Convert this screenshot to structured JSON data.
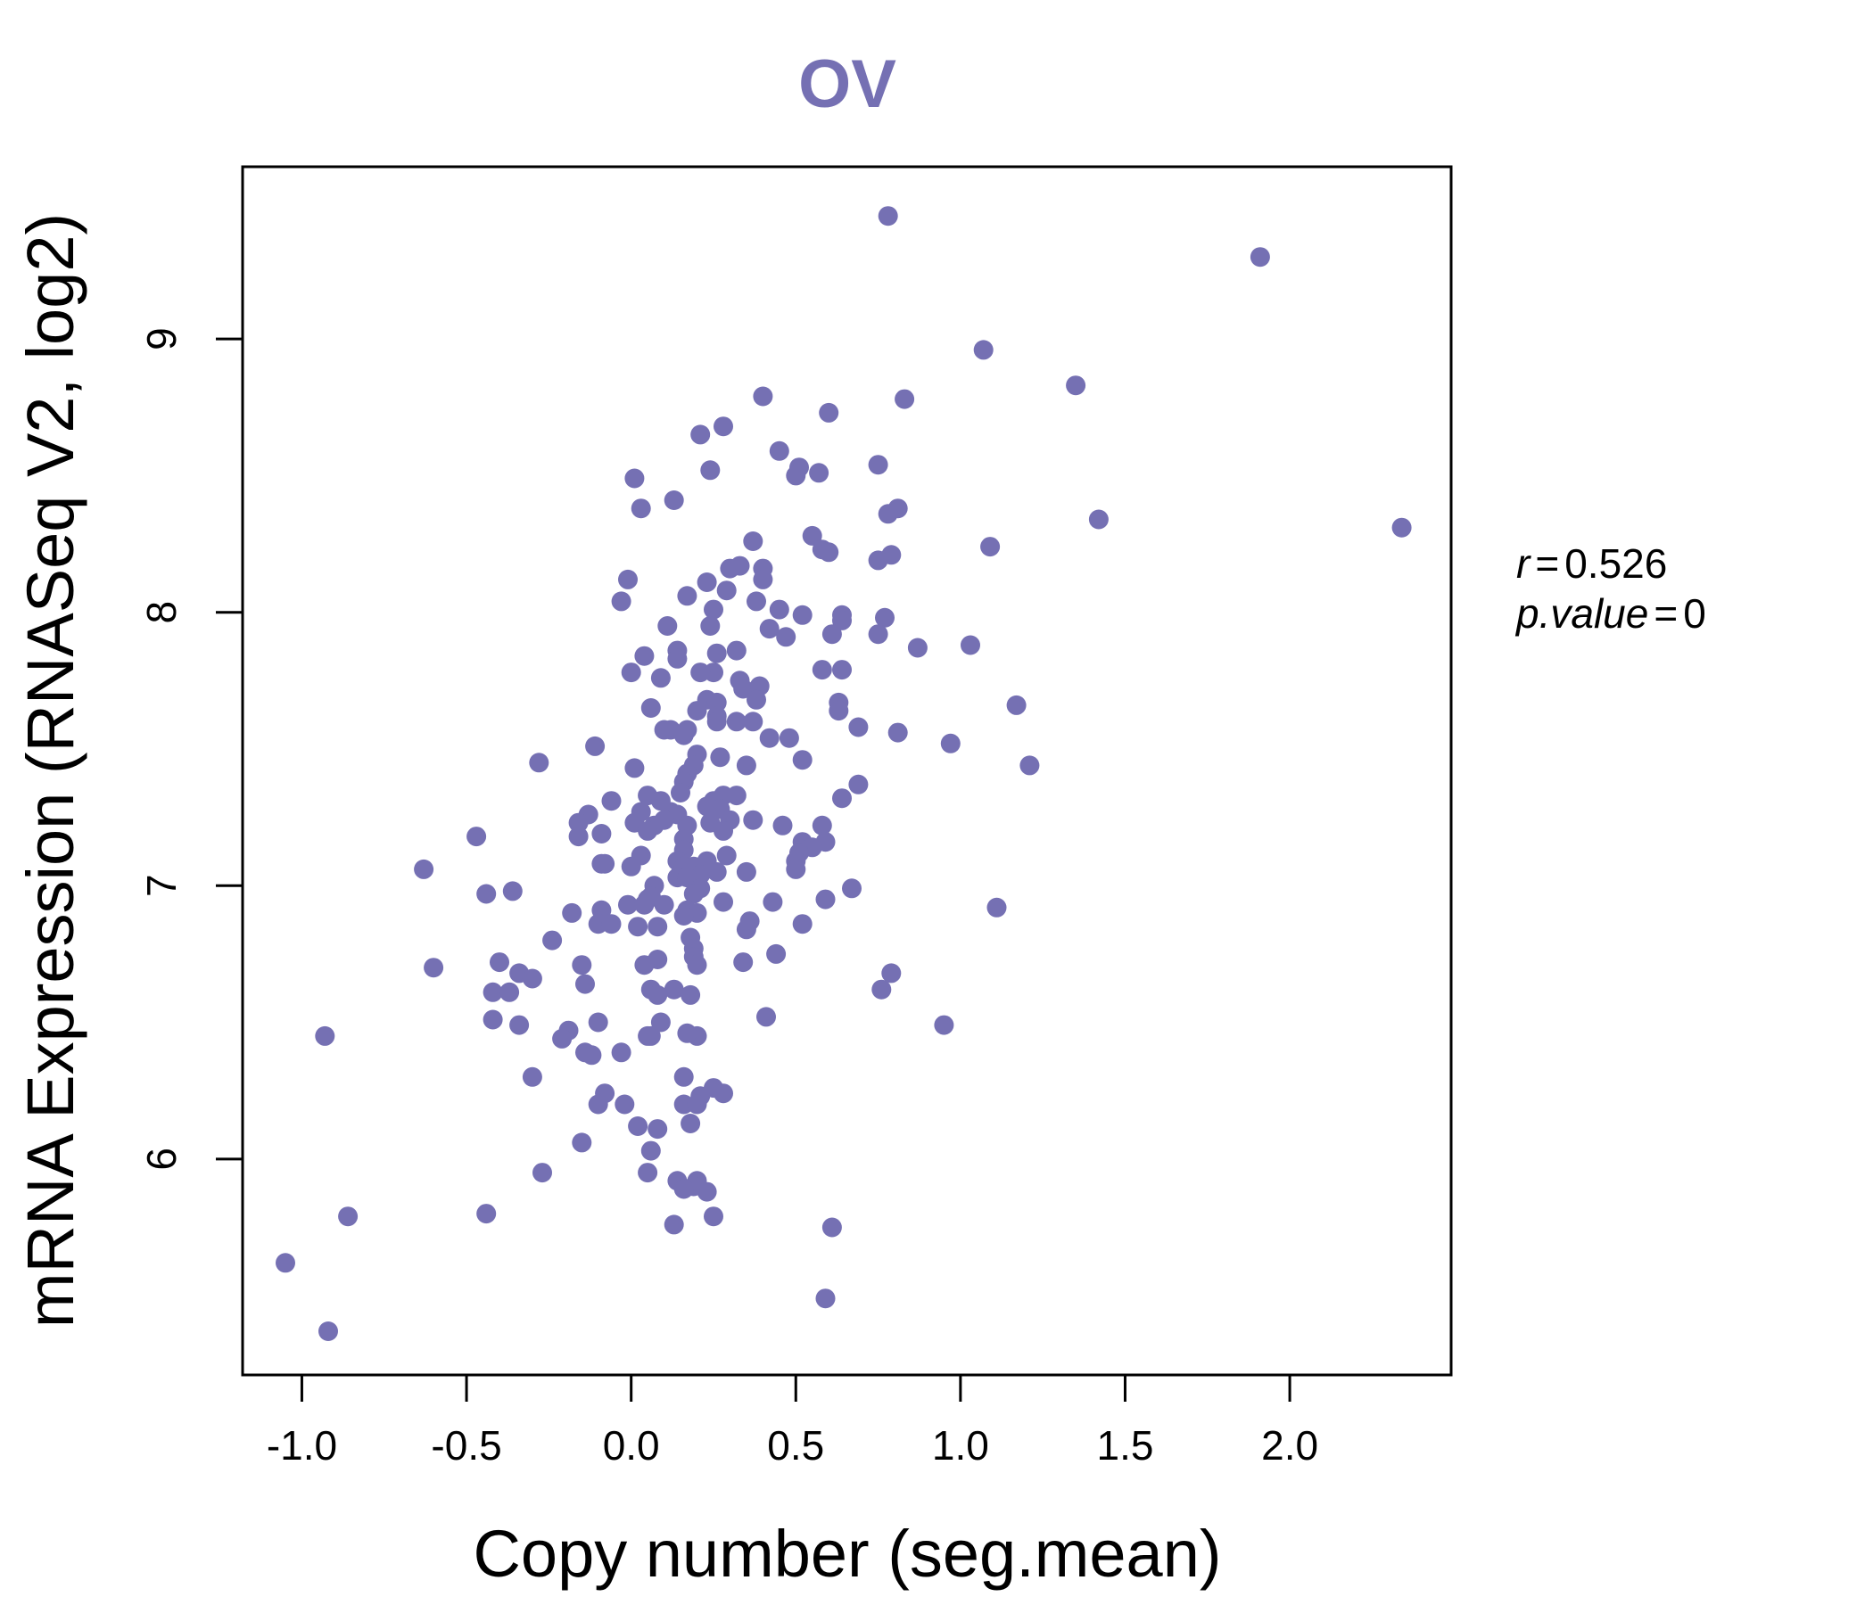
{
  "chart_data": {
    "type": "scatter",
    "title": "OV",
    "xlabel": "Copy number (seg.mean)",
    "ylabel": "mRNA Expression (RNASeq V2, log2)",
    "xlim": [
      -1.18,
      2.49
    ],
    "ylim": [
      5.21,
      9.63
    ],
    "xticks": [
      -1.0,
      -0.5,
      0.0,
      0.5,
      1.0,
      1.5,
      2.0
    ],
    "xtick_labels": [
      "-1.0",
      "-0.5",
      "0.0",
      "0.5",
      "1.0",
      "1.5",
      "2.0"
    ],
    "yticks": [
      6,
      7,
      8,
      9
    ],
    "ytick_labels": [
      "6",
      "7",
      "8",
      "9"
    ],
    "stats": {
      "r_label": "r",
      "r_value": "0.526",
      "p_label": "p.value",
      "p_value": "0",
      "eq": "="
    },
    "color": "#7570b3",
    "points": [
      [
        0.78,
        9.45
      ],
      [
        1.91,
        9.3
      ],
      [
        1.07,
        8.96
      ],
      [
        1.35,
        8.83
      ],
      [
        0.4,
        8.79
      ],
      [
        0.83,
        8.78
      ],
      [
        0.6,
        8.73
      ],
      [
        0.28,
        8.68
      ],
      [
        0.21,
        8.65
      ],
      [
        0.45,
        8.59
      ],
      [
        0.75,
        8.54
      ],
      [
        0.51,
        8.53
      ],
      [
        0.5,
        8.5
      ],
      [
        0.57,
        8.51
      ],
      [
        0.24,
        8.52
      ],
      [
        0.01,
        8.49
      ],
      [
        0.13,
        8.41
      ],
      [
        0.03,
        8.38
      ],
      [
        0.81,
        8.38
      ],
      [
        0.78,
        8.36
      ],
      [
        1.42,
        8.34
      ],
      [
        2.34,
        8.31
      ],
      [
        0.37,
        8.26
      ],
      [
        0.55,
        8.28
      ],
      [
        1.09,
        8.24
      ],
      [
        0.58,
        8.23
      ],
      [
        0.6,
        8.22
      ],
      [
        0.79,
        8.21
      ],
      [
        0.75,
        8.19
      ],
      [
        0.4,
        8.16
      ],
      [
        0.33,
        8.17
      ],
      [
        0.3,
        8.16
      ],
      [
        0.4,
        8.12
      ],
      [
        0.23,
        8.11
      ],
      [
        -0.01,
        8.12
      ],
      [
        0.29,
        8.08
      ],
      [
        0.17,
        8.06
      ],
      [
        -0.03,
        8.04
      ],
      [
        0.38,
        8.04
      ],
      [
        0.45,
        8.01
      ],
      [
        0.25,
        8.01
      ],
      [
        0.52,
        7.99
      ],
      [
        0.64,
        7.99
      ],
      [
        0.77,
        7.98
      ],
      [
        0.64,
        7.97
      ],
      [
        0.24,
        7.95
      ],
      [
        0.11,
        7.95
      ],
      [
        0.42,
        7.94
      ],
      [
        0.47,
        7.91
      ],
      [
        0.61,
        7.92
      ],
      [
        0.75,
        7.92
      ],
      [
        1.03,
        7.88
      ],
      [
        0.87,
        7.87
      ],
      [
        0.32,
        7.86
      ],
      [
        0.14,
        7.86
      ],
      [
        0.26,
        7.85
      ],
      [
        0.04,
        7.84
      ],
      [
        0.14,
        7.83
      ],
      [
        0.64,
        7.79
      ],
      [
        0.58,
        7.79
      ],
      [
        0.25,
        7.78
      ],
      [
        0.21,
        7.78
      ],
      [
        0.0,
        7.78
      ],
      [
        0.09,
        7.76
      ],
      [
        0.33,
        7.75
      ],
      [
        0.34,
        7.72
      ],
      [
        0.39,
        7.73
      ],
      [
        0.23,
        7.68
      ],
      [
        0.63,
        7.67
      ],
      [
        0.38,
        7.68
      ],
      [
        0.26,
        7.67
      ],
      [
        0.06,
        7.65
      ],
      [
        0.2,
        7.64
      ],
      [
        1.17,
        7.66
      ],
      [
        0.63,
        7.64
      ],
      [
        0.26,
        7.62
      ],
      [
        0.32,
        7.6
      ],
      [
        0.26,
        7.6
      ],
      [
        0.37,
        7.6
      ],
      [
        0.69,
        7.58
      ],
      [
        0.17,
        7.57
      ],
      [
        0.1,
        7.57
      ],
      [
        0.12,
        7.57
      ],
      [
        0.16,
        7.55
      ],
      [
        0.81,
        7.56
      ],
      [
        0.42,
        7.54
      ],
      [
        0.48,
        7.54
      ],
      [
        0.97,
        7.52
      ],
      [
        -0.11,
        7.51
      ],
      [
        0.2,
        7.48
      ],
      [
        0.27,
        7.47
      ],
      [
        0.52,
        7.46
      ],
      [
        -0.28,
        7.45
      ],
      [
        0.35,
        7.44
      ],
      [
        1.21,
        7.44
      ],
      [
        0.01,
        7.43
      ],
      [
        0.19,
        7.44
      ],
      [
        0.17,
        7.41
      ],
      [
        0.16,
        7.38
      ],
      [
        0.69,
        7.37
      ],
      [
        0.15,
        7.34
      ],
      [
        0.05,
        7.33
      ],
      [
        0.28,
        7.33
      ],
      [
        0.32,
        7.33
      ],
      [
        0.09,
        7.31
      ],
      [
        0.25,
        7.31
      ],
      [
        -0.06,
        7.31
      ],
      [
        0.64,
        7.32
      ],
      [
        0.27,
        7.28
      ],
      [
        0.23,
        7.29
      ],
      [
        0.12,
        7.27
      ],
      [
        0.03,
        7.27
      ],
      [
        -0.13,
        7.26
      ],
      [
        0.14,
        7.26
      ],
      [
        0.1,
        7.24
      ],
      [
        0.37,
        7.24
      ],
      [
        0.3,
        7.24
      ],
      [
        0.01,
        7.23
      ],
      [
        0.24,
        7.23
      ],
      [
        0.17,
        7.22
      ],
      [
        0.07,
        7.22
      ],
      [
        -0.16,
        7.23
      ],
      [
        0.46,
        7.22
      ],
      [
        0.58,
        7.22
      ],
      [
        0.05,
        7.2
      ],
      [
        0.28,
        7.2
      ],
      [
        -0.09,
        7.19
      ],
      [
        0.16,
        7.17
      ],
      [
        -0.16,
        7.18
      ],
      [
        0.52,
        7.16
      ],
      [
        0.59,
        7.16
      ],
      [
        -0.47,
        7.18
      ],
      [
        0.55,
        7.14
      ],
      [
        0.16,
        7.13
      ],
      [
        0.51,
        7.12
      ],
      [
        0.03,
        7.11
      ],
      [
        0.29,
        7.11
      ],
      [
        0.5,
        7.09
      ],
      [
        0.14,
        7.09
      ],
      [
        0.23,
        7.09
      ],
      [
        -0.09,
        7.08
      ],
      [
        -0.08,
        7.08
      ],
      [
        0.0,
        7.07
      ],
      [
        0.16,
        7.07
      ],
      [
        0.19,
        7.07
      ],
      [
        -0.63,
        7.06
      ],
      [
        0.5,
        7.06
      ],
      [
        0.35,
        7.05
      ],
      [
        0.26,
        7.05
      ],
      [
        0.21,
        7.04
      ],
      [
        0.14,
        7.03
      ],
      [
        0.17,
        7.03
      ],
      [
        0.07,
        7.0
      ],
      [
        0.21,
        6.99
      ],
      [
        0.67,
        6.99
      ],
      [
        -0.44,
        6.97
      ],
      [
        -0.36,
        6.98
      ],
      [
        0.19,
        6.97
      ],
      [
        0.06,
        6.96
      ],
      [
        0.05,
        6.95
      ],
      [
        0.43,
        6.94
      ],
      [
        0.28,
        6.94
      ],
      [
        0.59,
        6.95
      ],
      [
        0.1,
        6.93
      ],
      [
        -0.01,
        6.93
      ],
      [
        0.04,
        6.93
      ],
      [
        0.17,
        6.91
      ],
      [
        -0.09,
        6.91
      ],
      [
        0.2,
        6.9
      ],
      [
        1.11,
        6.92
      ],
      [
        -0.18,
        6.9
      ],
      [
        0.16,
        6.89
      ],
      [
        0.36,
        6.87
      ],
      [
        0.02,
        6.85
      ],
      [
        0.52,
        6.86
      ],
      [
        -0.1,
        6.86
      ],
      [
        0.08,
        6.85
      ],
      [
        -0.06,
        6.86
      ],
      [
        0.35,
        6.84
      ],
      [
        0.18,
        6.81
      ],
      [
        -0.24,
        6.8
      ],
      [
        0.19,
        6.77
      ],
      [
        0.44,
        6.75
      ],
      [
        0.08,
        6.73
      ],
      [
        0.19,
        6.74
      ],
      [
        -0.4,
        6.72
      ],
      [
        0.2,
        6.71
      ],
      [
        0.34,
        6.72
      ],
      [
        -0.15,
        6.71
      ],
      [
        0.04,
        6.71
      ],
      [
        -0.6,
        6.7
      ],
      [
        0.79,
        6.68
      ],
      [
        -0.34,
        6.68
      ],
      [
        -0.3,
        6.66
      ],
      [
        -0.14,
        6.64
      ],
      [
        0.13,
        6.62
      ],
      [
        0.06,
        6.62
      ],
      [
        -0.42,
        6.61
      ],
      [
        -0.37,
        6.61
      ],
      [
        0.76,
        6.62
      ],
      [
        0.18,
        6.6
      ],
      [
        0.08,
        6.6
      ],
      [
        0.41,
        6.52
      ],
      [
        -0.42,
        6.51
      ],
      [
        -0.1,
        6.5
      ],
      [
        0.09,
        6.5
      ],
      [
        -0.34,
        6.49
      ],
      [
        0.95,
        6.49
      ],
      [
        -0.19,
        6.47
      ],
      [
        -0.93,
        6.45
      ],
      [
        0.06,
        6.45
      ],
      [
        0.2,
        6.45
      ],
      [
        0.17,
        6.46
      ],
      [
        0.05,
        6.45
      ],
      [
        -0.21,
        6.44
      ],
      [
        -0.14,
        6.39
      ],
      [
        -0.03,
        6.39
      ],
      [
        -0.12,
        6.38
      ],
      [
        -0.3,
        6.3
      ],
      [
        0.16,
        6.3
      ],
      [
        -0.08,
        6.24
      ],
      [
        0.25,
        6.26
      ],
      [
        0.21,
        6.23
      ],
      [
        0.28,
        6.24
      ],
      [
        0.16,
        6.2
      ],
      [
        0.2,
        6.2
      ],
      [
        -0.02,
        6.2
      ],
      [
        -0.1,
        6.2
      ],
      [
        0.18,
        6.13
      ],
      [
        0.02,
        6.12
      ],
      [
        0.08,
        6.11
      ],
      [
        -0.15,
        6.06
      ],
      [
        0.06,
        6.03
      ],
      [
        -0.27,
        5.95
      ],
      [
        0.05,
        5.95
      ],
      [
        0.14,
        5.92
      ],
      [
        0.2,
        5.92
      ],
      [
        0.19,
        5.9
      ],
      [
        0.16,
        5.89
      ],
      [
        0.23,
        5.88
      ],
      [
        -0.44,
        5.8
      ],
      [
        -0.86,
        5.79
      ],
      [
        0.25,
        5.79
      ],
      [
        0.13,
        5.76
      ],
      [
        0.61,
        5.75
      ],
      [
        -1.05,
        5.62
      ],
      [
        0.59,
        5.49
      ],
      [
        -0.92,
        5.37
      ]
    ]
  }
}
